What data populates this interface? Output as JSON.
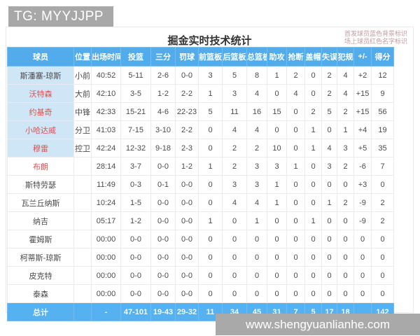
{
  "banners": {
    "top": "TG: MYYJJPP",
    "bottom": "www.shengyuanlianhe.com"
  },
  "title": "掘金实时技术统计",
  "notes": {
    "line1": "首发球员蓝色背景标识",
    "line2": "场上球员红色名字标识"
  },
  "colors": {
    "header_blue": "#52abea",
    "totals_blue": "#55b1ef",
    "starter_cell_blue": "#cfe6f6",
    "oncourt_name_red": "#d9534f",
    "banner_gray": "#a8a8a8"
  },
  "table": {
    "headers": [
      "球员",
      "位置",
      "出场时间",
      "投篮",
      "三分",
      "罚球",
      "前篮板",
      "后篮板",
      "总篮板",
      "助攻",
      "抢断",
      "盖帽",
      "失误",
      "犯规",
      "+/-",
      "得分"
    ],
    "rows": [
      {
        "name": "斯潘塞-琼斯",
        "starter": true,
        "oncourt": false,
        "cells": [
          "小前",
          "40:52",
          "5-11",
          "2-6",
          "0-0",
          "3",
          "5",
          "8",
          "1",
          "2",
          "0",
          "2",
          "4",
          "+2",
          "12"
        ]
      },
      {
        "name": "沃特森",
        "starter": true,
        "oncourt": true,
        "cells": [
          "大前",
          "42:10",
          "3-5",
          "1-2",
          "2-2",
          "1",
          "3",
          "4",
          "0",
          "4",
          "0",
          "2",
          "4",
          "+15",
          "9"
        ]
      },
      {
        "name": "约基奇",
        "starter": true,
        "oncourt": true,
        "cells": [
          "中锋",
          "42:33",
          "15-21",
          "4-6",
          "22-23",
          "5",
          "11",
          "16",
          "15",
          "0",
          "2",
          "5",
          "2",
          "+15",
          "56"
        ]
      },
      {
        "name": "小哈达威",
        "starter": true,
        "oncourt": true,
        "cells": [
          "分卫",
          "41:03",
          "7-15",
          "3-10",
          "2-2",
          "0",
          "4",
          "4",
          "0",
          "0",
          "1",
          "0",
          "1",
          "+4",
          "19"
        ]
      },
      {
        "name": "穆雷",
        "starter": true,
        "oncourt": true,
        "cells": [
          "控卫",
          "42:24",
          "12-32",
          "9-18",
          "2-3",
          "0",
          "2",
          "2",
          "10",
          "0",
          "1",
          "4",
          "3",
          "+5",
          "35"
        ]
      },
      {
        "name": "布朗",
        "starter": false,
        "oncourt": true,
        "cells": [
          "",
          "28:14",
          "3-7",
          "0-0",
          "1-2",
          "1",
          "2",
          "3",
          "3",
          "1",
          "0",
          "3",
          "2",
          "-6",
          "7"
        ]
      },
      {
        "name": "斯特劳瑟",
        "starter": false,
        "oncourt": false,
        "cells": [
          "",
          "11:49",
          "0-3",
          "0-1",
          "0-0",
          "0",
          "3",
          "3",
          "1",
          "0",
          "0",
          "0",
          "0",
          "+3",
          "0"
        ]
      },
      {
        "name": "瓦兰丘纳斯",
        "starter": false,
        "oncourt": false,
        "cells": [
          "",
          "10:24",
          "1-5",
          "0-0",
          "0-0",
          "0",
          "4",
          "4",
          "1",
          "0",
          "0",
          "1",
          "2",
          "-9",
          "2"
        ]
      },
      {
        "name": "纳吉",
        "starter": false,
        "oncourt": false,
        "cells": [
          "",
          "05:17",
          "1-2",
          "0-0",
          "0-0",
          "1",
          "0",
          "1",
          "0",
          "0",
          "1",
          "0",
          "0",
          "-9",
          "2"
        ]
      },
      {
        "name": "霍姆斯",
        "starter": false,
        "oncourt": false,
        "cells": [
          "",
          "00:00",
          "0-0",
          "0-0",
          "0-0",
          "0",
          "0",
          "0",
          "0",
          "0",
          "0",
          "0",
          "0",
          "0",
          "0"
        ]
      },
      {
        "name": "柯蒂斯-琼斯",
        "starter": false,
        "oncourt": false,
        "cells": [
          "",
          "00:00",
          "0-0",
          "0-0",
          "0-0",
          "0",
          "0",
          "0",
          "0",
          "0",
          "0",
          "0",
          "0",
          "0",
          "0"
        ]
      },
      {
        "name": "皮克特",
        "starter": false,
        "oncourt": false,
        "cells": [
          "",
          "00:00",
          "0-0",
          "0-0",
          "0-0",
          "0",
          "0",
          "0",
          "0",
          "0",
          "0",
          "0",
          "0",
          "0",
          "0"
        ]
      },
      {
        "name": "泰森",
        "starter": false,
        "oncourt": false,
        "cells": [
          "",
          "00:00",
          "0-0",
          "0-0",
          "0-0",
          "0",
          "0",
          "0",
          "0",
          "0",
          "0",
          "0",
          "0",
          "0",
          "0"
        ]
      }
    ],
    "totals": {
      "label": "总计",
      "cells": [
        "",
        "-",
        "47-101",
        "19-43",
        "29-32",
        "11",
        "34",
        "45",
        "31",
        "7",
        "5",
        "17",
        "18",
        "",
        "142"
      ]
    }
  }
}
